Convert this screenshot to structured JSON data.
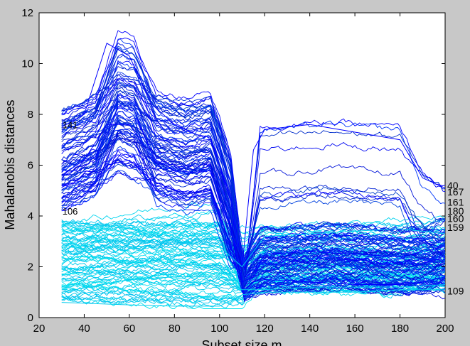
{
  "chart_data": {
    "type": "line",
    "title": "",
    "xlabel": "Subset size m",
    "ylabel": "Mahalanobis distances",
    "xlim": [
      20,
      200
    ],
    "ylim": [
      0,
      12
    ],
    "xticks": [
      "20",
      "40",
      "60",
      "80",
      "100",
      "120",
      "140",
      "160",
      "180",
      "200"
    ],
    "yticks": [
      "0",
      "2",
      "4",
      "6",
      "8",
      "10",
      "12"
    ],
    "grid": false,
    "legend": "none",
    "colors": {
      "figure_bg": "#c8c8c8",
      "plot_bg": "#ffffff",
      "dark_series": "#0000ff",
      "light_series": "#00ccee"
    },
    "series_summary": "forward-search trajectories for m = 30..200; one group rises to about 10.8 near m = 50 and drops to about 1-2 after m = 110; the other group stays between about 0.5 and 4",
    "right_labels": [
      "40",
      "167",
      "161",
      "180",
      "160",
      "159",
      "109"
    ],
    "left_labels": [
      "141",
      "106"
    ],
    "sample_series": [
      {
        "x": [
          30,
          40,
          50,
          60,
          70,
          80,
          90,
          96,
          100,
          105,
          110,
          115,
          120,
          140,
          160,
          180,
          190,
          200
        ],
        "y": [
          7.5,
          8.0,
          10.8,
          10.3,
          8.4,
          7.6,
          7.2,
          7.1,
          6.0,
          4.8,
          2.0,
          6.6,
          7.4,
          7.6,
          7.3,
          7.0,
          5.5,
          5.1
        ]
      },
      {
        "x": [
          30,
          40,
          50,
          60,
          70,
          80,
          90,
          96,
          100,
          105,
          110,
          115,
          120,
          140,
          160,
          180,
          190,
          200
        ],
        "y": [
          5.6,
          6.2,
          7.6,
          7.6,
          6.3,
          5.8,
          5.7,
          5.8,
          4.6,
          3.5,
          1.4,
          1.6,
          2.5,
          2.6,
          2.5,
          2.4,
          2.6,
          2.8
        ]
      },
      {
        "x": [
          30,
          40,
          50,
          60,
          70,
          80,
          90,
          96,
          100,
          105,
          110,
          115,
          120,
          140,
          160,
          180,
          190,
          200
        ],
        "y": [
          4.2,
          4.8,
          6.0,
          6.2,
          5.4,
          5.0,
          4.9,
          5.0,
          4.0,
          2.9,
          1.0,
          1.4,
          1.5,
          1.4,
          1.3,
          1.3,
          1.4,
          1.6
        ]
      },
      {
        "x": [
          30,
          60,
          80,
          100,
          110,
          120,
          140,
          160,
          180,
          200
        ],
        "y": [
          3.8,
          3.5,
          3.0,
          2.8,
          2.0,
          3.2,
          3.3,
          3.4,
          3.5,
          3.3
        ]
      },
      {
        "x": [
          30,
          60,
          80,
          100,
          110,
          120,
          140,
          160,
          180,
          200
        ],
        "y": [
          1.0,
          1.5,
          1.6,
          1.6,
          1.1,
          1.1,
          1.2,
          1.2,
          1.2,
          1.3
        ]
      },
      {
        "x": [
          30,
          60,
          80,
          100,
          110,
          120,
          140,
          160,
          180,
          200
        ],
        "y": [
          0.6,
          0.5,
          0.45,
          0.45,
          0.9,
          1.0,
          1.0,
          1.0,
          1.1,
          1.1
        ]
      }
    ]
  }
}
